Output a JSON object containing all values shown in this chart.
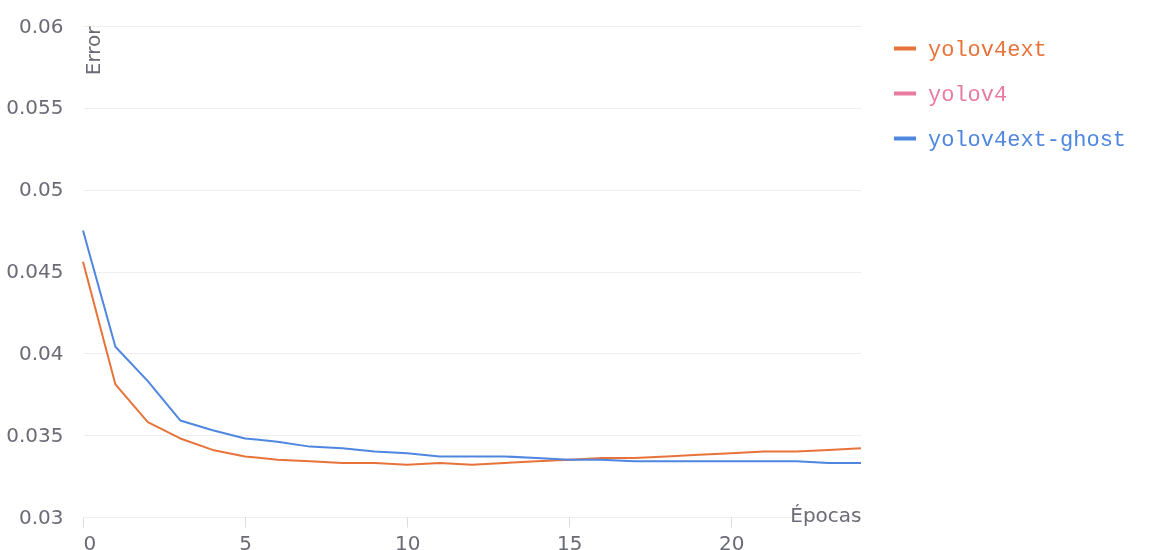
{
  "chart_data": {
    "type": "line",
    "xlabel": "Épocas",
    "ylabel": "Error",
    "x": [
      0,
      1,
      2,
      3,
      4,
      5,
      6,
      7,
      8,
      9,
      10,
      11,
      12,
      13,
      14,
      15,
      16,
      17,
      18,
      19,
      20,
      21,
      22,
      23,
      24
    ],
    "series": [
      {
        "name": "yolov4ext",
        "color": "#e8733a",
        "values": [
          0.0456,
          0.0381,
          0.0358,
          0.0348,
          0.0341,
          0.0337,
          0.0335,
          0.0334,
          0.0333,
          0.0333,
          0.0332,
          0.0333,
          0.0332,
          0.0333,
          0.0334,
          0.0335,
          0.0336,
          0.0336,
          0.0337,
          0.0338,
          0.0339,
          0.034,
          0.034,
          0.0341,
          0.0342
        ]
      },
      {
        "name": "yolov4",
        "color": "#e87ba0",
        "values": [
          null,
          null,
          null,
          null,
          null,
          null,
          null,
          null,
          null,
          null,
          null,
          null,
          null,
          null,
          null,
          null,
          null,
          null,
          null,
          null,
          null,
          null,
          null,
          null,
          null
        ]
      },
      {
        "name": "yolov4ext-ghost",
        "color": "#4f86e0",
        "values": [
          0.0475,
          0.0404,
          0.0383,
          0.0359,
          0.0353,
          0.0348,
          0.0346,
          0.0343,
          0.0342,
          0.034,
          0.0339,
          0.0337,
          0.0337,
          0.0337,
          0.0336,
          0.0335,
          0.0335,
          0.0334,
          0.0334,
          0.0334,
          0.0334,
          0.0334,
          0.0334,
          0.0333,
          0.0333
        ]
      }
    ],
    "xlim": [
      0,
      24
    ],
    "xticks": [
      0,
      5,
      10,
      15,
      20
    ],
    "ylim": [
      0.03,
      0.06
    ],
    "yticks": [
      0.03,
      0.035,
      0.04,
      0.045,
      0.05,
      0.055,
      0.06
    ],
    "grid": "y",
    "legend": "right",
    "line_style": "solid",
    "marker": "none"
  }
}
